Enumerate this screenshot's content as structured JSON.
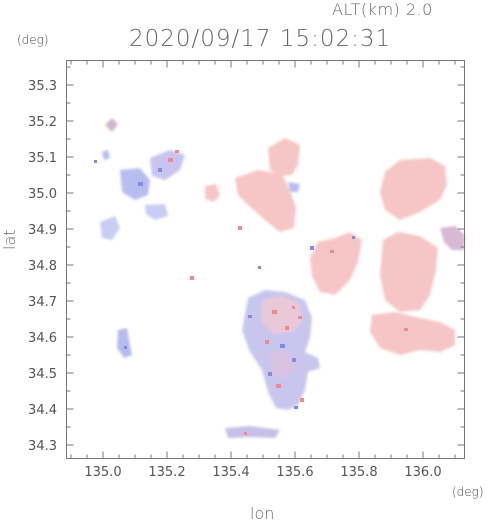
{
  "header": {
    "altitude_label": "ALT(km)  2.0",
    "datetime": "2020/09/17 15:02:31"
  },
  "axes": {
    "y_unit": "(deg)",
    "x_unit": "(deg)",
    "y_title": "lat",
    "x_title": "lon",
    "x_ticks": [
      "135.0",
      "135.2",
      "135.4",
      "135.6",
      "135.8",
      "136.0"
    ],
    "y_ticks": [
      "35.3",
      "35.2",
      "35.1",
      "35.0",
      "34.9",
      "34.8",
      "34.7",
      "34.6",
      "34.5",
      "34.4",
      "34.3"
    ]
  },
  "colors": {
    "frame": "#777777",
    "positive": "#f4a3a8",
    "negative": "#a8b0f0"
  }
}
